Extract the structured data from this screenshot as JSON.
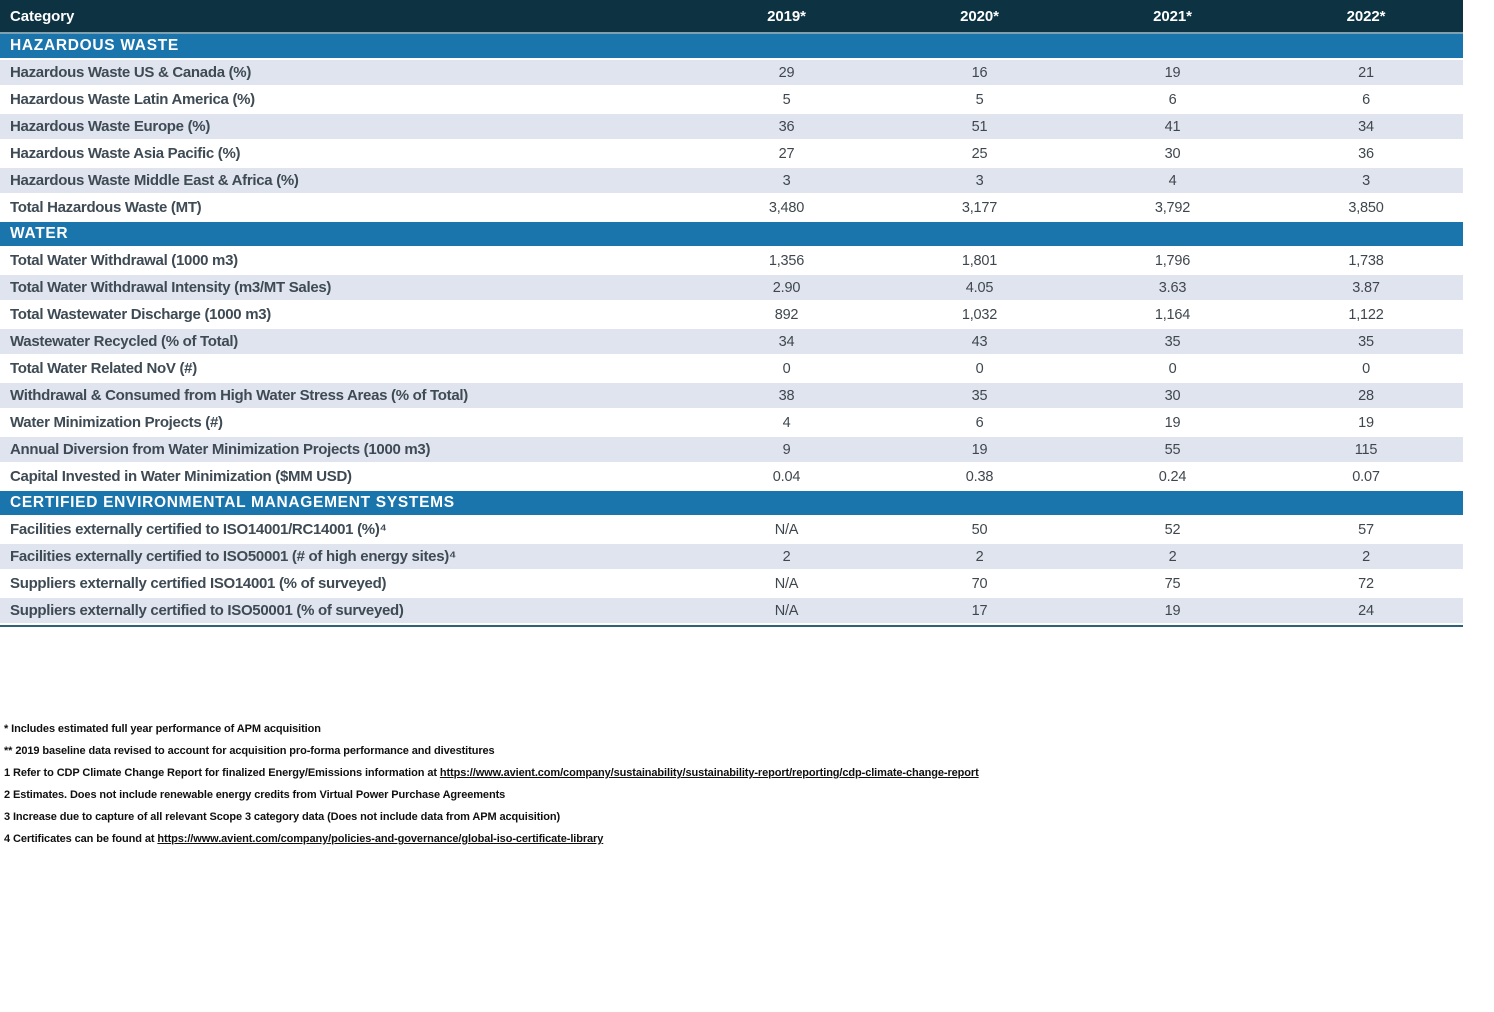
{
  "table": {
    "header": {
      "category_label": "Category",
      "years": [
        "2019*",
        "2020*",
        "2021*",
        "2022*"
      ]
    },
    "sections": [
      {
        "title": "HAZARDOUS WASTE",
        "first_row_shaded": true,
        "rows": [
          {
            "label": "Hazardous Waste US & Canada (%)",
            "values": [
              "29",
              "16",
              "19",
              "21"
            ]
          },
          {
            "label": "Hazardous Waste Latin America (%)",
            "values": [
              "5",
              "5",
              "6",
              "6"
            ]
          },
          {
            "label": "Hazardous Waste Europe (%)",
            "values": [
              "36",
              "51",
              "41",
              "34"
            ]
          },
          {
            "label": "Hazardous Waste Asia Pacific (%)",
            "values": [
              "27",
              "25",
              "30",
              "36"
            ]
          },
          {
            "label": "Hazardous Waste Middle East & Africa (%)",
            "values": [
              "3",
              "3",
              "4",
              "3"
            ]
          },
          {
            "label": "Total Hazardous Waste (MT)",
            "values": [
              "3,480",
              "3,177",
              "3,792",
              "3,850"
            ]
          }
        ]
      },
      {
        "title": "WATER",
        "first_row_shaded": false,
        "rows": [
          {
            "label": "Total Water Withdrawal (1000 m3)",
            "values": [
              "1,356",
              "1,801",
              "1,796",
              "1,738"
            ]
          },
          {
            "label": "Total Water Withdrawal Intensity (m3/MT Sales)",
            "values": [
              "2.90",
              "4.05",
              "3.63",
              "3.87"
            ]
          },
          {
            "label": "Total Wastewater Discharge (1000 m3)",
            "values": [
              "892",
              "1,032",
              "1,164",
              "1,122"
            ]
          },
          {
            "label": "Wastewater Recycled (% of Total)",
            "values": [
              "34",
              "43",
              "35",
              "35"
            ]
          },
          {
            "label": "Total Water Related NoV (#)",
            "values": [
              "0",
              "0",
              "0",
              "0"
            ]
          },
          {
            "label": "Withdrawal & Consumed from High Water Stress Areas (% of Total)",
            "values": [
              "38",
              "35",
              "30",
              "28"
            ]
          },
          {
            "label": "Water Minimization Projects (#)",
            "values": [
              "4",
              "6",
              "19",
              "19"
            ]
          },
          {
            "label": "Annual Diversion from Water Minimization Projects (1000 m3)",
            "values": [
              "9",
              "19",
              "55",
              "115"
            ]
          },
          {
            "label": "Capital Invested in Water Minimization ($MM USD)",
            "values": [
              "0.04",
              "0.38",
              "0.24",
              "0.07"
            ]
          }
        ]
      },
      {
        "title": "CERTIFIED ENVIRONMENTAL MANAGEMENT SYSTEMS",
        "first_row_shaded": false,
        "rows": [
          {
            "label": "Facilities externally certified to ISO14001/RC14001 (%)⁴",
            "values": [
              "N/A",
              "50",
              "52",
              "57"
            ]
          },
          {
            "label": "Facilities externally certified to ISO50001 (# of high energy sites)⁴",
            "values": [
              "2",
              "2",
              "2",
              "2"
            ]
          },
          {
            "label": "Suppliers externally certified ISO14001 (% of surveyed)",
            "values": [
              "N/A",
              "70",
              "75",
              "72"
            ]
          },
          {
            "label": "Suppliers externally certified to ISO50001 (% of surveyed)",
            "values": [
              "N/A",
              "17",
              "19",
              "24"
            ]
          }
        ]
      }
    ]
  },
  "footnotes": [
    {
      "prefix": "* Includes estimated full year performance of APM acquisition",
      "link": ""
    },
    {
      "prefix": "** 2019 baseline data revised to account for acquisition pro-forma performance and divestitures",
      "link": ""
    },
    {
      "prefix": "1 Refer to CDP Climate Change Report for finalized Energy/Emissions information at ",
      "link": "https://www.avient.com/company/sustainability/sustainability-report/reporting/cdp-climate-change-report"
    },
    {
      "prefix": "2 Estimates. Does not include renewable energy credits from Virtual Power Purchase Agreements",
      "link": ""
    },
    {
      "prefix": "3 Increase due to capture of all relevant Scope 3 category data (Does not include data from APM acquisition)",
      "link": ""
    },
    {
      "prefix": "4 Certificates can be found at ",
      "link": "https://www.avient.com/company/policies-and-governance/global-iso-certificate-library"
    }
  ],
  "colors": {
    "header-navy": "#0D3242",
    "section-blue": "#1B75AD",
    "row-shaded": "#E0E4EE",
    "header-divider": "#7FA0B0",
    "table-bottom-border": "#2E6076",
    "label-text": "#3E4A54",
    "value-text": "#3F474E",
    "footnote-text": "#101010"
  }
}
